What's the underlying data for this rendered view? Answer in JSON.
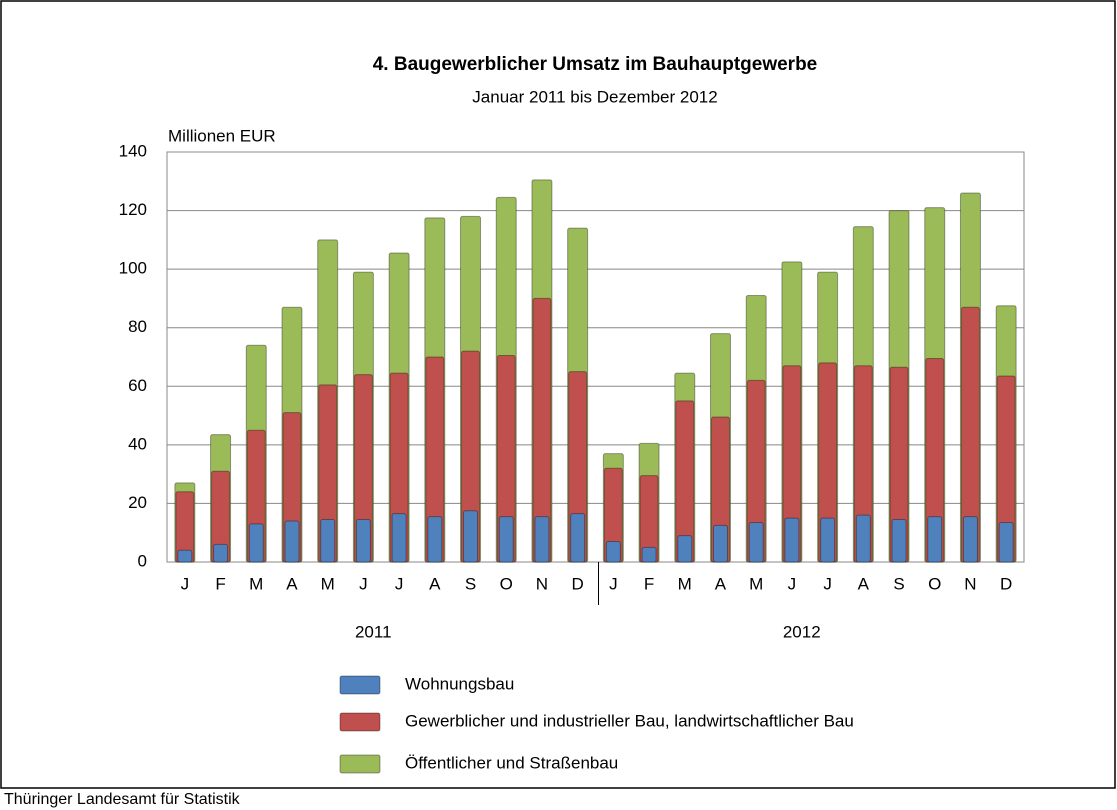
{
  "chart_data": {
    "type": "bar",
    "mode": "overlap",
    "title": "4. Baugewerblicher Umsatz im Bauhauptgewerbe",
    "subtitle": "Januar 2011 bis Dezember 2012",
    "y_label": "Millionen EUR",
    "source": "Thüringer Landesamt für Statistik",
    "categories": [
      "J",
      "F",
      "M",
      "A",
      "M",
      "J",
      "J",
      "A",
      "S",
      "O",
      "N",
      "D",
      "J",
      "F",
      "M",
      "A",
      "M",
      "J",
      "J",
      "A",
      "S",
      "O",
      "N",
      "D"
    ],
    "groups": [
      "2011",
      "2012"
    ],
    "series": [
      {
        "name": "Öffentlicher und Straßenbau",
        "color": "#9bbb59",
        "values": [
          27,
          43.5,
          74,
          87,
          110,
          99,
          105.5,
          117.5,
          118,
          124.5,
          130.5,
          114,
          37,
          40.5,
          64.5,
          78,
          91,
          102.5,
          99,
          114.5,
          120,
          121,
          126,
          87.5
        ]
      },
      {
        "name": "Gewerblicher und industrieller Bau, landwirtschaftlicher Bau",
        "color": "#c0504d",
        "values": [
          24,
          31,
          45,
          51,
          60.5,
          64,
          64.5,
          70,
          72,
          70.5,
          90,
          65,
          32,
          29.5,
          55,
          49.5,
          62,
          67,
          68,
          67,
          66.5,
          69.5,
          87,
          63.5
        ]
      },
      {
        "name": "Wohnungsbau",
        "color": "#4f81bd",
        "values": [
          4,
          6,
          13,
          14,
          14.5,
          14.5,
          16.5,
          15.5,
          17.5,
          15.5,
          15.5,
          16.5,
          7,
          5,
          9,
          12.5,
          13.5,
          15,
          15,
          16,
          14.5,
          15.5,
          15.5,
          13.5
        ]
      }
    ],
    "ylim": [
      0,
      140
    ],
    "yticks": [
      0,
      20,
      40,
      60,
      80,
      100,
      120,
      140
    ],
    "grid": true
  }
}
